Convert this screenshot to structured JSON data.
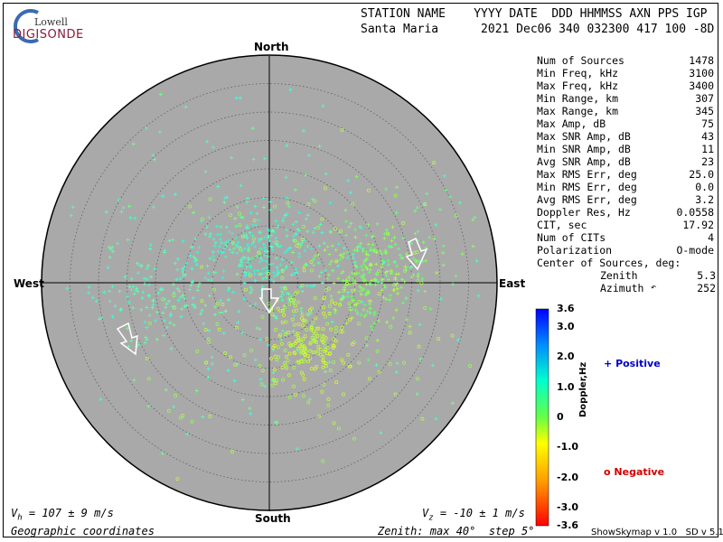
{
  "logo": {
    "line1": "Lowell",
    "line2": "DIGISONDE"
  },
  "header": {
    "line1": "STATION NAME    YYYY DATE  DDD HHMMSS AXN PPS IGP",
    "line2": "Santa Maria      2021 Dec06 340 032300 417 100 -8D"
  },
  "compass": {
    "north": "North",
    "south": "South",
    "east": "East",
    "west": "West"
  },
  "stats": [
    {
      "label": "Num of Sources",
      "value": "1478"
    },
    {
      "label": "Min Freq, kHz",
      "value": "3100"
    },
    {
      "label": "Max Freq, kHz",
      "value": "3400"
    },
    {
      "label": "Min Range, km",
      "value": "307"
    },
    {
      "label": "Max Range, km",
      "value": "345"
    },
    {
      "label": "Max Amp, dB",
      "value": "75"
    },
    {
      "label": "Max SNR Amp, dB",
      "value": "43"
    },
    {
      "label": "Min SNR Amp, dB",
      "value": "11"
    },
    {
      "label": "Avg SNR Amp, dB",
      "value": "23"
    },
    {
      "label": "Max RMS Err, deg",
      "value": "25.0"
    },
    {
      "label": "Min RMS Err, deg",
      "value": "0.0"
    },
    {
      "label": "Avg RMS Err, deg",
      "value": "3.2"
    },
    {
      "label": "Doppler Res, Hz",
      "value": "0.0558"
    },
    {
      "label": "CIT, sec",
      "value": "17.92"
    },
    {
      "label": "Num of CITs",
      "value": "4"
    },
    {
      "label": "Polarization",
      "value": "O-mode"
    }
  ],
  "center": {
    "title": "Center of Sources, deg:",
    "zenith_label": "Zenith",
    "zenith_value": "5.3",
    "azimuth_label": "Azimuth",
    "azimuth_symbol": "↶",
    "azimuth_value": "252"
  },
  "colorbar": {
    "label": "Doppler,Hz",
    "ticks": [
      "3.6",
      "3.0",
      "2.0",
      "1.0",
      "0",
      "-1.0",
      "-2.0",
      "-3.0",
      "-3.6"
    ],
    "tick_values": [
      3.6,
      3.0,
      2.0,
      1.0,
      0,
      -1.0,
      -2.0,
      -3.0,
      -3.6
    ],
    "range": [
      -3.6,
      3.6
    ]
  },
  "legend": {
    "positive_symbol": "+",
    "positive": "Positive",
    "negative_symbol": "o",
    "negative": "Negative",
    "positive_color": "#0000c8",
    "negative_color": "#d00000"
  },
  "footer": {
    "vh_prefix": "V",
    "vh_sub": "h",
    "vh_text": " = 107 ± 9 m/s",
    "vz_prefix": "V",
    "vz_sub": "z",
    "vz_text": " = -10 ± 1 m/s",
    "coords": "Geographic coordinates",
    "zenith_info": "Zenith: max 40°  step 5°",
    "version": "ShowSkymap v 1.0   SD v 5.1"
  },
  "colors": {
    "disk": "#a9a9a9",
    "positive_cluster": "#33ffcc",
    "negative_cluster": "#b0ff40"
  }
}
